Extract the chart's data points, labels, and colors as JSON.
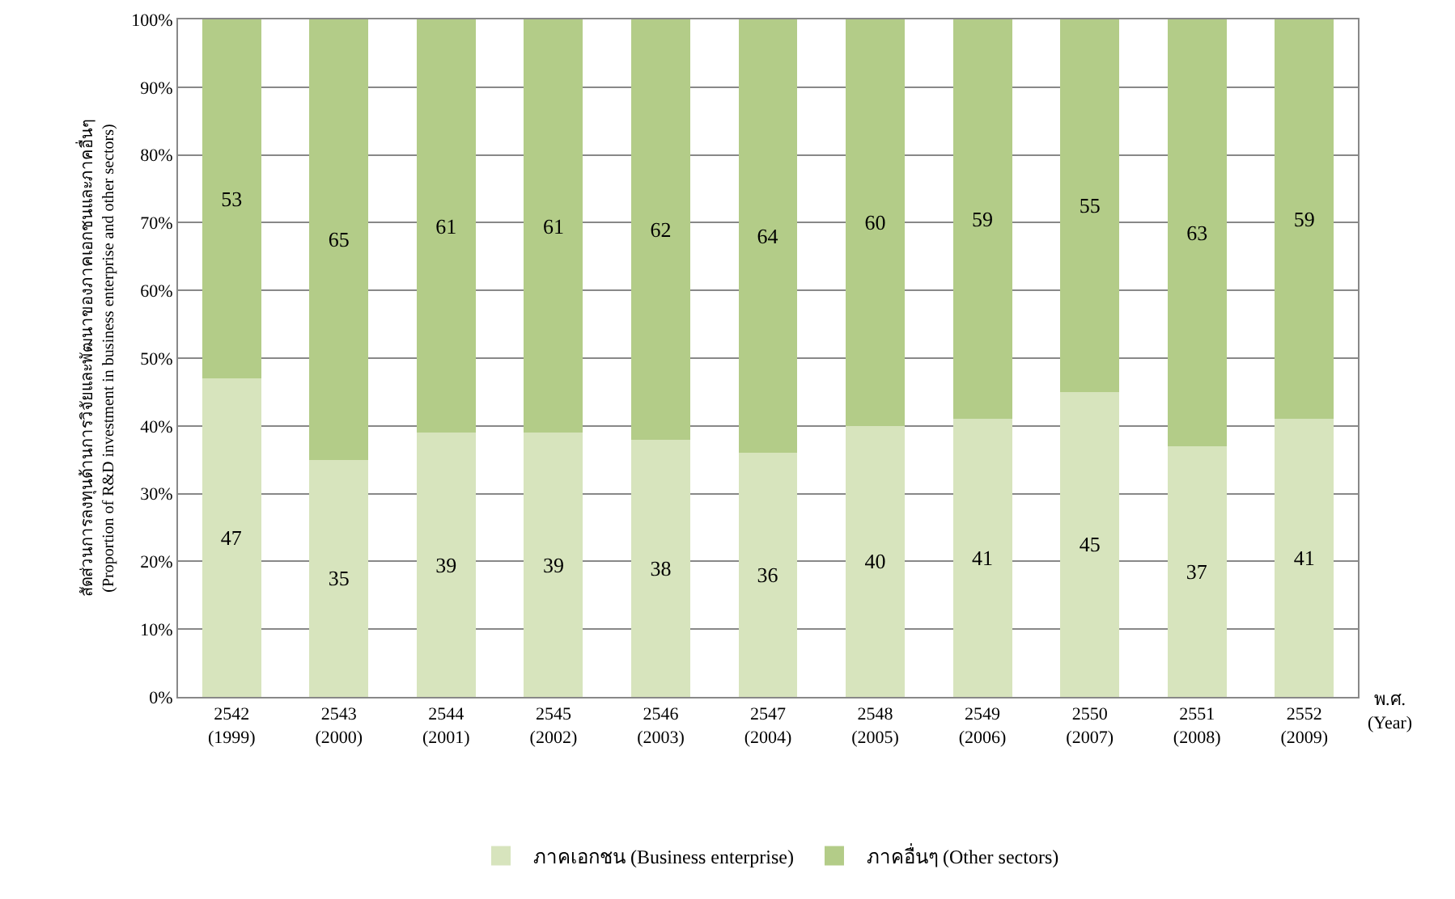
{
  "chart_data": {
    "type": "bar",
    "stacked": true,
    "ylabel": "สัดส่วนการลงทุนด้านการวิจัยและพัฒนาของภาคเอกชนและภาคอื่นๆ\n(Proportion of R&D investment in business enterprise and other sectors)",
    "xlabel": "พ.ศ.\n(Year)",
    "categories": [
      "2542\n(1999)",
      "2543\n(2000)",
      "2544\n(2001)",
      "2545\n(2002)",
      "2546\n(2003)",
      "2547\n(2004)",
      "2548\n(2005)",
      "2549\n(2006)",
      "2550\n(2007)",
      "2551\n(2008)",
      "2552\n(2009)"
    ],
    "series": [
      {
        "name": "ภาคเอกชน (Business enterprise)",
        "color": "#d7e4bd",
        "values": [
          47,
          35,
          39,
          39,
          38,
          36,
          40,
          41,
          45,
          37,
          41
        ]
      },
      {
        "name": "ภาคอื่นๆ (Other sectors)",
        "color": "#b3cc88",
        "values": [
          53,
          65,
          61,
          61,
          62,
          64,
          60,
          59,
          55,
          63,
          59
        ]
      }
    ],
    "ylim": [
      0,
      100
    ],
    "yticks": [
      {
        "value": 0,
        "label": "0%"
      },
      {
        "value": 10,
        "label": "10%"
      },
      {
        "value": 20,
        "label": "20%"
      },
      {
        "value": 30,
        "label": "30%"
      },
      {
        "value": 40,
        "label": "40%"
      },
      {
        "value": 50,
        "label": "50%"
      },
      {
        "value": 60,
        "label": "60%"
      },
      {
        "value": 70,
        "label": "70%"
      },
      {
        "value": 80,
        "label": "80%"
      },
      {
        "value": 90,
        "label": "90%"
      },
      {
        "value": 100,
        "label": "100%"
      }
    ],
    "grid": "y",
    "legend": "bottom",
    "data_labels": true
  }
}
